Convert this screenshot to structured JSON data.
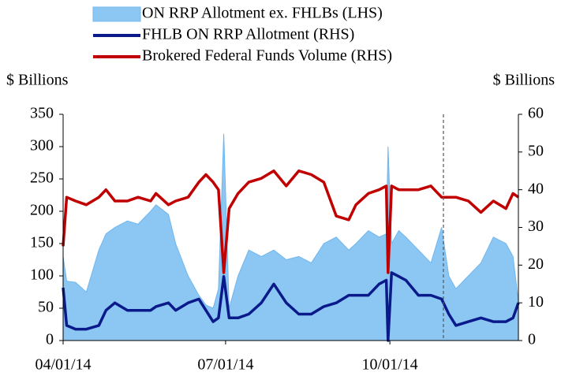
{
  "chart_data": {
    "type": "line",
    "y_label": "$ Billions",
    "y2_label": "$ Billions",
    "x": [
      "2014-04-01",
      "2014-04-03",
      "2014-04-08",
      "2014-04-14",
      "2014-04-21",
      "2014-04-25",
      "2014-04-30",
      "2014-05-07",
      "2014-05-13",
      "2014-05-20",
      "2014-05-23",
      "2014-05-30",
      "2014-06-03",
      "2014-06-10",
      "2014-06-16",
      "2014-06-20",
      "2014-06-24",
      "2014-06-27",
      "2014-06-30",
      "2014-07-03",
      "2014-07-08",
      "2014-07-14",
      "2014-07-21",
      "2014-07-28",
      "2014-08-04",
      "2014-08-11",
      "2014-08-18",
      "2014-08-25",
      "2014-09-01",
      "2014-09-08",
      "2014-09-12",
      "2014-09-19",
      "2014-09-25",
      "2014-09-29",
      "2014-09-30",
      "2014-10-02",
      "2014-10-06",
      "2014-10-10",
      "2014-10-17",
      "2014-10-24",
      "2014-10-30",
      "2014-11-03",
      "2014-11-07",
      "2014-11-14",
      "2014-11-21",
      "2014-11-28",
      "2014-12-05",
      "2014-12-09",
      "2014-12-12"
    ],
    "series": [
      {
        "name": "ON RRP Allotment ex. FHLBs (LHS)",
        "mark": "area",
        "color": "#8cc7f3",
        "axis": "y",
        "values": [
          130,
          92,
          90,
          75,
          140,
          165,
          175,
          185,
          180,
          200,
          210,
          195,
          150,
          100,
          70,
          55,
          50,
          80,
          320,
          50,
          100,
          140,
          130,
          140,
          125,
          130,
          120,
          150,
          160,
          140,
          150,
          170,
          160,
          165,
          300,
          150,
          170,
          160,
          140,
          120,
          175,
          100,
          80,
          100,
          120,
          160,
          150,
          130,
          60
        ]
      },
      {
        "name": "FHLB ON RRP Allotment (RHS)",
        "mark": "line",
        "color": "#0a1a8a",
        "axis": "y2",
        "values": [
          14,
          4,
          3,
          3,
          4,
          8,
          10,
          8,
          8,
          8,
          9,
          10,
          8,
          10,
          11,
          8,
          5,
          6,
          17,
          6,
          6,
          7,
          10,
          15,
          10,
          7,
          7,
          9,
          10,
          12,
          12,
          12,
          15,
          16,
          0,
          18,
          17,
          16,
          12,
          12,
          11,
          7,
          4,
          5,
          6,
          5,
          5,
          6,
          10
        ]
      },
      {
        "name": "Brokered Federal Funds Volume (RHS)",
        "mark": "line",
        "color": "#c00000",
        "axis": "y2",
        "values": [
          25,
          38,
          37,
          36,
          38,
          40,
          37,
          37,
          38,
          37,
          39,
          36,
          37,
          38,
          42,
          44,
          42,
          40,
          18,
          35,
          39,
          42,
          43,
          45,
          41,
          45,
          44,
          42,
          33,
          32,
          36,
          39,
          40,
          41,
          18,
          41,
          40,
          40,
          40,
          41,
          38,
          38,
          38,
          37,
          34,
          37,
          35,
          39,
          38
        ]
      }
    ],
    "xlim": [
      "2014-04-01",
      "2014-12-12"
    ],
    "xticks": [
      {
        "value": "2014-04-01",
        "label": "04/01/14"
      },
      {
        "value": "2014-07-01",
        "label": "07/01/14"
      },
      {
        "value": "2014-10-01",
        "label": "10/01/14"
      }
    ],
    "ylim": [
      0,
      350
    ],
    "yticks": [
      0,
      50,
      100,
      150,
      200,
      250,
      300,
      350
    ],
    "y2lim": [
      0,
      60
    ],
    "y2ticks": [
      0,
      10,
      20,
      30,
      40,
      50,
      60
    ],
    "vline": "2014-10-31",
    "legend": "top"
  }
}
